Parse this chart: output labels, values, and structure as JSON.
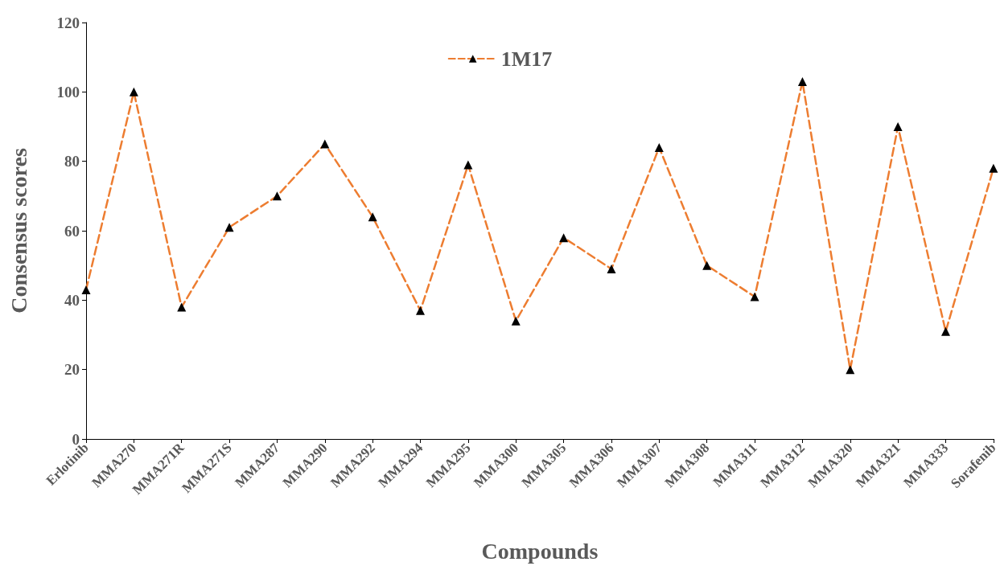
{
  "chart_data": {
    "type": "line",
    "xlabel": "Compounds",
    "ylabel": "Consensus scores",
    "categories": [
      "Erlotinib",
      "MMA270",
      "MMA271R",
      "MMA271S",
      "MMA287",
      "MMA290",
      "MMA292",
      "MMA294",
      "MMA295",
      "MMA300",
      "MMA305",
      "MMA306",
      "MMA307",
      "MMA308",
      "MMA311",
      "MMA312",
      "MMA320",
      "MMA321",
      "MMA333",
      "Sorafenib"
    ],
    "series": [
      {
        "name": "1M17",
        "color": "#ed7d31",
        "colors": [
          "#000000",
          "#000000",
          "#000000",
          "#000000",
          "#000000",
          "#000000",
          "#000000",
          "#000000",
          "#000000",
          "#000000",
          "#000000",
          "#000000",
          "#000000",
          "#000000",
          "#000000",
          "#000000",
          "#000000",
          "#000000",
          "#000000",
          "#000000"
        ],
        "values": [
          43,
          100,
          38,
          61,
          70,
          85,
          64,
          37,
          79,
          34,
          58,
          49,
          84,
          50,
          41,
          103,
          20,
          90,
          31,
          78
        ]
      }
    ],
    "ylim": [
      0,
      120
    ],
    "yticks": [
      0,
      20,
      40,
      60,
      80,
      100,
      120
    ],
    "grid": false,
    "legend": "top",
    "marker": "triangle",
    "line_style": "dashed"
  }
}
